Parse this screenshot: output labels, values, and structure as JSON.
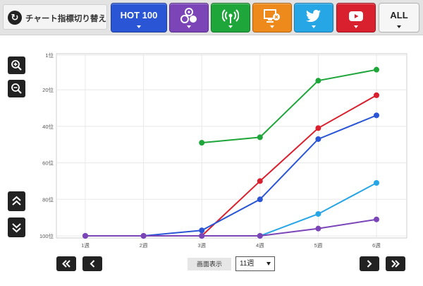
{
  "toolbar": {
    "switch_label": "チャート指標切り替え",
    "hot100_label": "HOT 100",
    "all_label": "ALL"
  },
  "colors": {
    "hot100": "#2a56d6",
    "sales": "#7b45b8",
    "radio": "#1fa63a",
    "pc": "#ee8a1c",
    "twitter": "#27a6e6",
    "youtube": "#d9202e"
  },
  "icons": [
    "zoom-in-icon",
    "zoom-out-icon",
    "double-chevron-up-icon",
    "double-chevron-down-icon",
    "switch-icon",
    "sales-icon",
    "radio-icon",
    "pc-lookup-icon",
    "twitter-icon",
    "youtube-icon"
  ],
  "footer": {
    "display_label": "画面表示",
    "weeks_selected": "11週"
  },
  "chart_data": {
    "type": "line",
    "title": "",
    "xlabel": "",
    "ylabel": "",
    "categories": [
      "1週",
      "2週",
      "3週",
      "4週",
      "5週",
      "6週"
    ],
    "y_ticks": [
      1,
      20,
      40,
      60,
      80,
      100
    ],
    "y_tick_labels": [
      "1位",
      "20位",
      "40位",
      "60位",
      "80位",
      "100位"
    ],
    "ylim": [
      1,
      100
    ],
    "y_inverted": true,
    "grid": true,
    "series": [
      {
        "color": "#1fa63a",
        "values": [
          null,
          null,
          49,
          46,
          15,
          9
        ]
      },
      {
        "color": "#d9202e",
        "values": [
          null,
          null,
          101,
          70,
          41,
          23
        ]
      },
      {
        "color": "#2a56d6",
        "values": [
          101,
          101,
          97,
          80,
          47,
          34
        ]
      },
      {
        "color": "#27a6e6",
        "values": [
          null,
          null,
          101,
          101,
          88,
          71
        ]
      },
      {
        "color": "#7b45b8",
        "values": [
          101,
          101,
          101,
          101,
          96,
          91
        ]
      }
    ]
  }
}
